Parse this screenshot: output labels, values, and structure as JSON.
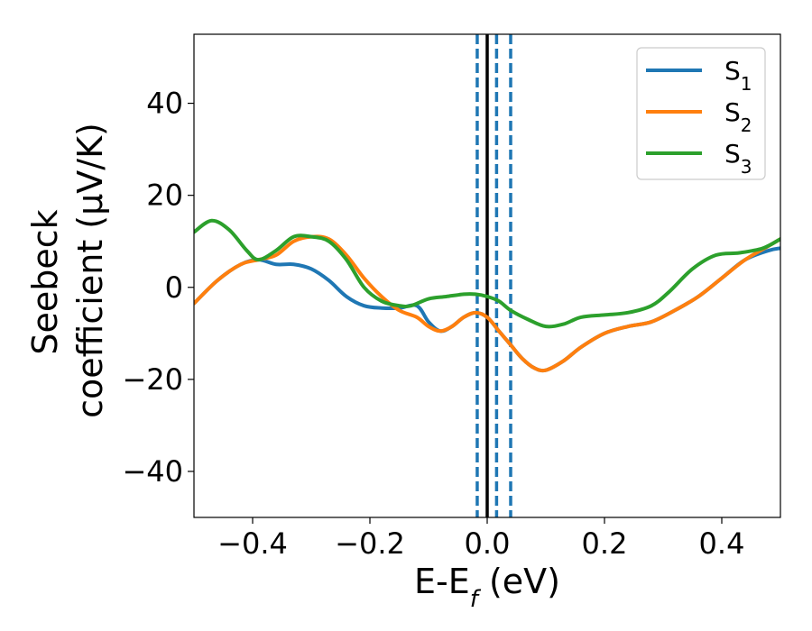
{
  "chart_data": {
    "type": "line",
    "title": "",
    "xlabel": {
      "main": "E-E",
      "sub": "f",
      "suffix": " (eV)"
    },
    "ylabel": {
      "line1": "Seebeck",
      "line2": "coefficient  (μV/K)"
    },
    "xlim": [
      -0.5,
      0.5
    ],
    "ylim": [
      -50,
      55
    ],
    "x_ticks": [
      -0.4,
      -0.2,
      0.0,
      0.2,
      0.4
    ],
    "x_tick_labels": [
      "−0.4",
      "−0.2",
      "0.0",
      "0.2",
      "0.4"
    ],
    "y_ticks": [
      -40,
      -20,
      0,
      20,
      40
    ],
    "y_tick_labels": [
      "−40",
      "−20",
      "0",
      "20",
      "40"
    ],
    "legend_position": "top-right",
    "vlines": [
      {
        "x": 0.0,
        "color": "#000000",
        "style": "solid"
      },
      {
        "x": -0.017,
        "color": "#1f77b4",
        "style": "dashed"
      },
      {
        "x": 0.016,
        "color": "#1f77b4",
        "style": "dashed"
      },
      {
        "x": 0.04,
        "color": "#1f77b4",
        "style": "dashed"
      }
    ],
    "series": [
      {
        "name": "S",
        "sub": "1",
        "color": "#1f77b4",
        "x": [
          -0.5,
          -0.46,
          -0.42,
          -0.39,
          -0.36,
          -0.33,
          -0.3,
          -0.27,
          -0.24,
          -0.21,
          -0.18,
          -0.15,
          -0.12,
          -0.1,
          -0.08,
          -0.06,
          -0.04,
          -0.02,
          0.0,
          0.02,
          0.04,
          0.06,
          0.08,
          0.1,
          0.13,
          0.16,
          0.2,
          0.24,
          0.28,
          0.32,
          0.36,
          0.4,
          0.44,
          0.48,
          0.5
        ],
        "y": [
          -3.5,
          1.5,
          5,
          6,
          5,
          5,
          4,
          1.5,
          -2,
          -4,
          -4.5,
          -4.5,
          -4,
          -7.5,
          -9.5,
          -8.5,
          -6.5,
          -5.5,
          -6.5,
          -9.5,
          -12.5,
          -15.5,
          -17.5,
          -18,
          -16,
          -13,
          -10,
          -8.5,
          -7.5,
          -5,
          -2,
          2,
          6,
          8,
          8.5
        ]
      },
      {
        "name": "S",
        "sub": "2",
        "color": "#ff7f0e",
        "x": [
          -0.5,
          -0.46,
          -0.42,
          -0.39,
          -0.36,
          -0.33,
          -0.3,
          -0.27,
          -0.24,
          -0.21,
          -0.18,
          -0.15,
          -0.12,
          -0.1,
          -0.08,
          -0.06,
          -0.04,
          -0.02,
          0.0,
          0.02,
          0.04,
          0.06,
          0.08,
          0.1,
          0.13,
          0.16,
          0.2,
          0.24,
          0.28,
          0.32,
          0.36,
          0.4,
          0.44,
          0.48,
          0.5
        ],
        "y": [
          -3.5,
          1.5,
          5,
          6,
          7,
          10,
          11,
          10.5,
          7,
          2,
          -2,
          -5,
          -6.5,
          -8.5,
          -9.5,
          -8.5,
          -6.5,
          -5.5,
          -6.5,
          -9.5,
          -12.5,
          -15.5,
          -17.5,
          -18,
          -16,
          -13,
          -10,
          -8.5,
          -7.5,
          -5,
          -2,
          2,
          6,
          9,
          10.5
        ]
      },
      {
        "name": "S",
        "sub": "3",
        "color": "#2ca02c",
        "x": [
          -0.5,
          -0.47,
          -0.44,
          -0.41,
          -0.39,
          -0.36,
          -0.33,
          -0.3,
          -0.27,
          -0.24,
          -0.21,
          -0.18,
          -0.15,
          -0.13,
          -0.1,
          -0.07,
          -0.04,
          -0.02,
          0.0,
          0.02,
          0.04,
          0.07,
          0.1,
          0.13,
          0.16,
          0.2,
          0.24,
          0.28,
          0.31,
          0.35,
          0.39,
          0.43,
          0.47,
          0.5
        ],
        "y": [
          12,
          14.5,
          12.5,
          8,
          6,
          8,
          11,
          11,
          10,
          6,
          0,
          -3,
          -4,
          -4,
          -2.5,
          -2,
          -1.5,
          -1.5,
          -2,
          -3,
          -5,
          -7,
          -8.5,
          -8,
          -6.5,
          -6,
          -5.5,
          -4,
          -1,
          4,
          7,
          7.5,
          8.5,
          10.5
        ]
      }
    ]
  }
}
